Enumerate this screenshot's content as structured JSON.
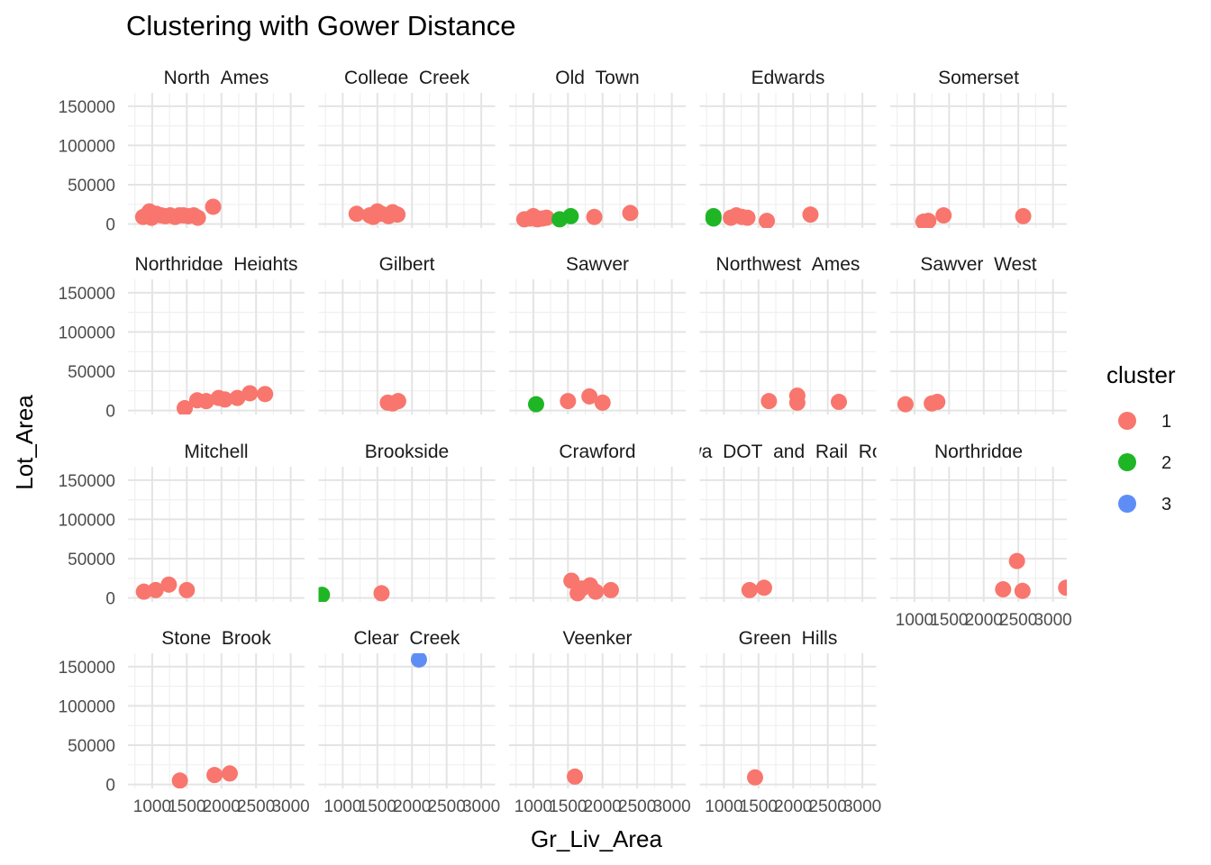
{
  "chart_data": {
    "type": "scatter",
    "title": "Clustering with Gower Distance",
    "xlabel": "Gr_Liv_Area",
    "ylabel": "Lot_Area",
    "xlim": [
      650,
      3200
    ],
    "ylim": [
      -5000,
      167000
    ],
    "x_ticks": [
      1000,
      1500,
      2000,
      2500,
      3000
    ],
    "y_ticks": [
      0,
      50000,
      100000,
      150000
    ],
    "grid": true,
    "legend": {
      "title": "cluster",
      "placement": "right",
      "entries": [
        {
          "label": "1",
          "color": "#F8766D"
        },
        {
          "label": "2",
          "color": "#1FB626"
        },
        {
          "label": "3",
          "color": "#5E8EF5"
        }
      ]
    },
    "panels": [
      {
        "name": "North_Ames",
        "points": [
          {
            "x": 870,
            "y": 9000,
            "cluster": "1"
          },
          {
            "x": 930,
            "y": 12000,
            "cluster": "1"
          },
          {
            "x": 960,
            "y": 16000,
            "cluster": "1"
          },
          {
            "x": 990,
            "y": 8000,
            "cluster": "1"
          },
          {
            "x": 1060,
            "y": 13000,
            "cluster": "1"
          },
          {
            "x": 1130,
            "y": 11000,
            "cluster": "1"
          },
          {
            "x": 1190,
            "y": 10000,
            "cluster": "1"
          },
          {
            "x": 1260,
            "y": 11000,
            "cluster": "1"
          },
          {
            "x": 1330,
            "y": 9000,
            "cluster": "1"
          },
          {
            "x": 1390,
            "y": 11000,
            "cluster": "1"
          },
          {
            "x": 1450,
            "y": 11000,
            "cluster": "1"
          },
          {
            "x": 1520,
            "y": 10000,
            "cluster": "1"
          },
          {
            "x": 1600,
            "y": 11000,
            "cluster": "1"
          },
          {
            "x": 1660,
            "y": 8000,
            "cluster": "1"
          },
          {
            "x": 1880,
            "y": 22000,
            "cluster": "1"
          }
        ]
      },
      {
        "name": "College_Creek",
        "points": [
          {
            "x": 1200,
            "y": 13000,
            "cluster": "1"
          },
          {
            "x": 1390,
            "y": 11000,
            "cluster": "1"
          },
          {
            "x": 1440,
            "y": 9000,
            "cluster": "1"
          },
          {
            "x": 1500,
            "y": 16000,
            "cluster": "1"
          },
          {
            "x": 1560,
            "y": 13000,
            "cluster": "1"
          },
          {
            "x": 1660,
            "y": 10000,
            "cluster": "1"
          },
          {
            "x": 1720,
            "y": 15000,
            "cluster": "1"
          },
          {
            "x": 1790,
            "y": 12000,
            "cluster": "1"
          }
        ]
      },
      {
        "name": "Old_Town",
        "points": [
          {
            "x": 870,
            "y": 6000,
            "cluster": "1"
          },
          {
            "x": 950,
            "y": 7000,
            "cluster": "1"
          },
          {
            "x": 1000,
            "y": 10000,
            "cluster": "1"
          },
          {
            "x": 1060,
            "y": 6000,
            "cluster": "1"
          },
          {
            "x": 1130,
            "y": 7000,
            "cluster": "1"
          },
          {
            "x": 1190,
            "y": 8000,
            "cluster": "1"
          },
          {
            "x": 1380,
            "y": 6000,
            "cluster": "2"
          },
          {
            "x": 1540,
            "y": 10000,
            "cluster": "2"
          },
          {
            "x": 1880,
            "y": 9000,
            "cluster": "1"
          },
          {
            "x": 2400,
            "y": 14000,
            "cluster": "1"
          }
        ]
      },
      {
        "name": "Edwards",
        "points": [
          {
            "x": 850,
            "y": 10000,
            "cluster": "2"
          },
          {
            "x": 850,
            "y": 7000,
            "cluster": "2"
          },
          {
            "x": 1100,
            "y": 8000,
            "cluster": "1"
          },
          {
            "x": 1180,
            "y": 11000,
            "cluster": "1"
          },
          {
            "x": 1260,
            "y": 9000,
            "cluster": "1"
          },
          {
            "x": 1340,
            "y": 8000,
            "cluster": "1"
          },
          {
            "x": 1620,
            "y": 4000,
            "cluster": "1"
          },
          {
            "x": 2250,
            "y": 12000,
            "cluster": "1"
          }
        ]
      },
      {
        "name": "Somerset",
        "points": [
          {
            "x": 1130,
            "y": 3000,
            "cluster": "1"
          },
          {
            "x": 1200,
            "y": 4000,
            "cluster": "1"
          },
          {
            "x": 1420,
            "y": 11000,
            "cluster": "1"
          },
          {
            "x": 2570,
            "y": 10000,
            "cluster": "1"
          }
        ]
      },
      {
        "name": "Northridge_Heights",
        "points": [
          {
            "x": 1470,
            "y": 3000,
            "cluster": "1"
          },
          {
            "x": 1650,
            "y": 13000,
            "cluster": "1"
          },
          {
            "x": 1780,
            "y": 12000,
            "cluster": "1"
          },
          {
            "x": 1960,
            "y": 16000,
            "cluster": "1"
          },
          {
            "x": 2050,
            "y": 14000,
            "cluster": "1"
          },
          {
            "x": 2230,
            "y": 16000,
            "cluster": "1"
          },
          {
            "x": 2410,
            "y": 22000,
            "cluster": "1"
          },
          {
            "x": 2630,
            "y": 21000,
            "cluster": "1"
          }
        ]
      },
      {
        "name": "Gilbert",
        "points": [
          {
            "x": 1650,
            "y": 10000,
            "cluster": "1"
          },
          {
            "x": 1720,
            "y": 9000,
            "cluster": "1"
          },
          {
            "x": 1800,
            "y": 12000,
            "cluster": "1"
          }
        ]
      },
      {
        "name": "Sawyer",
        "points": [
          {
            "x": 1040,
            "y": 8000,
            "cluster": "2"
          },
          {
            "x": 1500,
            "y": 12000,
            "cluster": "1"
          },
          {
            "x": 1810,
            "y": 18000,
            "cluster": "1"
          },
          {
            "x": 2000,
            "y": 10000,
            "cluster": "1"
          }
        ]
      },
      {
        "name": "Northwest_Ames",
        "points": [
          {
            "x": 1650,
            "y": 12000,
            "cluster": "1"
          },
          {
            "x": 2060,
            "y": 19000,
            "cluster": "1"
          },
          {
            "x": 2060,
            "y": 10000,
            "cluster": "1"
          },
          {
            "x": 2660,
            "y": 11000,
            "cluster": "1"
          }
        ]
      },
      {
        "name": "Sawyer_West",
        "points": [
          {
            "x": 870,
            "y": 8000,
            "cluster": "1"
          },
          {
            "x": 1250,
            "y": 9000,
            "cluster": "1"
          },
          {
            "x": 1330,
            "y": 11000,
            "cluster": "1"
          }
        ]
      },
      {
        "name": "Mitchell",
        "points": [
          {
            "x": 880,
            "y": 8000,
            "cluster": "1"
          },
          {
            "x": 1050,
            "y": 10000,
            "cluster": "1"
          },
          {
            "x": 1240,
            "y": 17000,
            "cluster": "1"
          },
          {
            "x": 1500,
            "y": 10000,
            "cluster": "1"
          }
        ]
      },
      {
        "name": "Brookside",
        "points": [
          {
            "x": 700,
            "y": 4000,
            "cluster": "2"
          },
          {
            "x": 1560,
            "y": 6000,
            "cluster": "1"
          }
        ]
      },
      {
        "name": "Crawford",
        "points": [
          {
            "x": 1550,
            "y": 22000,
            "cluster": "1"
          },
          {
            "x": 1640,
            "y": 6000,
            "cluster": "1"
          },
          {
            "x": 1700,
            "y": 12000,
            "cluster": "1"
          },
          {
            "x": 1820,
            "y": 16000,
            "cluster": "1"
          },
          {
            "x": 1900,
            "y": 8000,
            "cluster": "1"
          },
          {
            "x": 2120,
            "y": 10000,
            "cluster": "1"
          }
        ]
      },
      {
        "name": "Iowa_DOT_and_Rail_Road",
        "points": [
          {
            "x": 1370,
            "y": 10000,
            "cluster": "1"
          },
          {
            "x": 1580,
            "y": 13000,
            "cluster": "1"
          }
        ]
      },
      {
        "name": "Northridge",
        "points": [
          {
            "x": 2280,
            "y": 11000,
            "cluster": "1"
          },
          {
            "x": 2480,
            "y": 47000,
            "cluster": "1"
          },
          {
            "x": 2560,
            "y": 9000,
            "cluster": "1"
          },
          {
            "x": 3190,
            "y": 13000,
            "cluster": "1"
          }
        ]
      },
      {
        "name": "Stone_Brook",
        "points": [
          {
            "x": 1400,
            "y": 5000,
            "cluster": "1"
          },
          {
            "x": 1900,
            "y": 12000,
            "cluster": "1"
          },
          {
            "x": 2120,
            "y": 14000,
            "cluster": "1"
          }
        ]
      },
      {
        "name": "Clear_Creek",
        "points": [
          {
            "x": 2100,
            "y": 159000,
            "cluster": "3"
          }
        ]
      },
      {
        "name": "Veenker",
        "points": [
          {
            "x": 1600,
            "y": 10000,
            "cluster": "1"
          }
        ]
      },
      {
        "name": "Green_Hills",
        "points": [
          {
            "x": 1450,
            "y": 9000,
            "cluster": "1"
          }
        ]
      }
    ]
  }
}
